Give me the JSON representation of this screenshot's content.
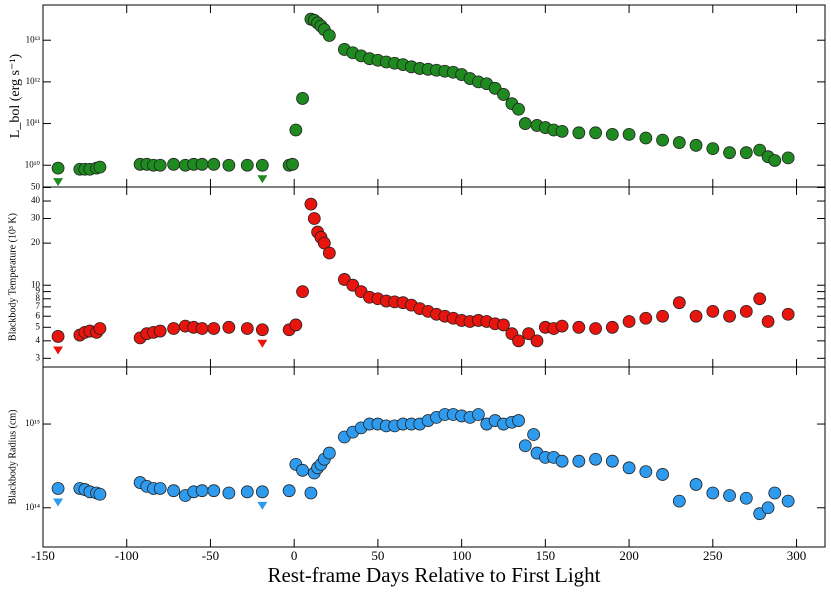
{
  "chart_data": [
    {
      "type": "scatter",
      "y_label": "L_bol (erg s⁻¹)",
      "color": "#1f8a1f",
      "log_y": true,
      "ylim": [
        3000000000.0,
        70000000000000.0
      ],
      "yticks": [
        {
          "value": 10000000000.0,
          "label": "10¹⁰"
        },
        {
          "value": 100000000000.0,
          "label": "10¹¹"
        },
        {
          "value": 1000000000000.0,
          "label": "10¹²"
        },
        {
          "value": 10000000000000.0,
          "label": "10¹³"
        }
      ],
      "upper_limits": [
        0,
        17
      ],
      "x": [
        -141,
        -128,
        -125,
        -122,
        -118,
        -116,
        -92,
        -88,
        -84,
        -80,
        -72,
        -65,
        -60,
        -55,
        -48,
        -39,
        -28,
        -19,
        -3,
        -1,
        1,
        5,
        10,
        12,
        14,
        16,
        18,
        21,
        30,
        35,
        40,
        45,
        50,
        55,
        60,
        65,
        70,
        75,
        80,
        85,
        90,
        95,
        100,
        105,
        110,
        115,
        120,
        125,
        130,
        134,
        138,
        145,
        150,
        155,
        160,
        170,
        180,
        190,
        200,
        210,
        220,
        230,
        240,
        250,
        260,
        270,
        278,
        283,
        287,
        295
      ],
      "values": [
        8500000000.0,
        8000000000.0,
        8000000000.0,
        8000000000.0,
        8500000000.0,
        9000000000.0,
        10500000000.0,
        10500000000.0,
        10000000000.0,
        10000000000.0,
        10500000000.0,
        10000000000.0,
        10500000000.0,
        10500000000.0,
        10500000000.0,
        10000000000.0,
        10000000000.0,
        10000000000.0,
        10000000000.0,
        10500000000.0,
        70000000000.0,
        400000000000.0,
        32000000000000.0,
        30000000000000.0,
        26000000000000.0,
        22000000000000.0,
        18000000000000.0,
        13000000000000.0,
        6000000000000.0,
        5000000000000.0,
        4200000000000.0,
        3600000000000.0,
        3300000000000.0,
        3000000000000.0,
        2800000000000.0,
        2600000000000.0,
        2300000000000.0,
        2100000000000.0,
        2000000000000.0,
        1900000000000.0,
        1800000000000.0,
        1700000000000.0,
        1500000000000.0,
        1200000000000.0,
        1000000000000.0,
        900000000000.0,
        700000000000.0,
        500000000000.0,
        300000000000.0,
        220000000000.0,
        100000000000.0,
        90000000000.0,
        80000000000.0,
        70000000000.0,
        65000000000.0,
        60000000000.0,
        60000000000.0,
        55000000000.0,
        55000000000.0,
        45000000000.0,
        40000000000.0,
        35000000000.0,
        30000000000.0,
        25000000000.0,
        20000000000.0,
        20000000000.0,
        23000000000.0,
        16000000000.0,
        13000000000.0,
        15000000000.0
      ]
    },
    {
      "type": "scatter",
      "y_label": "Blackbody Temperature (10³ K)",
      "color": "#e8140e",
      "log_y": true,
      "ylim": [
        2.6,
        50.4
      ],
      "yticks": [
        3,
        4,
        5,
        6,
        7,
        8,
        9,
        10,
        20,
        30,
        40,
        50
      ],
      "upper_limits": [
        0,
        17
      ],
      "x": [
        -141,
        -128,
        -125,
        -122,
        -118,
        -116,
        -92,
        -88,
        -84,
        -80,
        -72,
        -65,
        -60,
        -55,
        -48,
        -39,
        -28,
        -19,
        -3,
        1,
        5,
        10,
        12,
        14,
        16,
        18,
        21,
        30,
        35,
        40,
        45,
        50,
        55,
        60,
        65,
        70,
        75,
        80,
        85,
        90,
        95,
        100,
        105,
        110,
        115,
        120,
        125,
        130,
        134,
        140,
        145,
        150,
        155,
        160,
        170,
        180,
        190,
        200,
        210,
        220,
        230,
        240,
        250,
        260,
        270,
        278,
        283,
        295
      ],
      "values": [
        4.3,
        4.4,
        4.6,
        4.7,
        4.6,
        4.9,
        4.2,
        4.5,
        4.6,
        4.7,
        4.9,
        5.1,
        5,
        4.9,
        4.9,
        5,
        4.9,
        4.8,
        4.8,
        5.2,
        9,
        38,
        30,
        24,
        22,
        20,
        17,
        11,
        10,
        9,
        8.2,
        8,
        7.7,
        7.6,
        7.5,
        7.2,
        6.8,
        6.5,
        6.2,
        6,
        5.8,
        5.6,
        5.5,
        5.6,
        5.5,
        5.3,
        5.2,
        4.5,
        4,
        4.5,
        4,
        5,
        4.9,
        5.1,
        5,
        4.9,
        5,
        5.5,
        5.8,
        6,
        7.5,
        6,
        6.5,
        6,
        6.5,
        8,
        5.5,
        6.2
      ]
    },
    {
      "type": "scatter",
      "y_label": "Blackbody Radius (cm)",
      "x_label": "Rest-frame Days Relative to First Light",
      "color": "#2f9bef",
      "log_y": true,
      "xlim": [
        -150,
        317
      ],
      "xticks": [
        -150,
        -100,
        -50,
        0,
        50,
        100,
        150,
        200,
        250,
        300
      ],
      "ylim": [
        34000000000000.0,
        4800000000000000.0
      ],
      "yticks": [
        {
          "value": 100000000000000.0,
          "label": "10¹⁴"
        },
        {
          "value": 1000000000000000.0,
          "label": "10¹⁵"
        }
      ],
      "upper_limits": [
        0,
        17
      ],
      "x": [
        -141,
        -128,
        -125,
        -122,
        -118,
        -116,
        -92,
        -88,
        -84,
        -80,
        -72,
        -65,
        -60,
        -55,
        -48,
        -39,
        -28,
        -19,
        -3,
        1,
        5,
        10,
        12,
        14,
        16,
        18,
        21,
        30,
        35,
        40,
        45,
        50,
        55,
        60,
        65,
        70,
        75,
        80,
        85,
        90,
        95,
        100,
        105,
        110,
        115,
        120,
        125,
        130,
        134,
        138,
        143,
        145,
        150,
        155,
        160,
        170,
        180,
        190,
        200,
        210,
        220,
        230,
        240,
        250,
        260,
        270,
        278,
        283,
        287,
        295
      ],
      "values": [
        170000000000000.0,
        170000000000000.0,
        165000000000000.0,
        155000000000000.0,
        150000000000000.0,
        145000000000000.0,
        200000000000000.0,
        180000000000000.0,
        170000000000000.0,
        170000000000000.0,
        160000000000000.0,
        140000000000000.0,
        155000000000000.0,
        160000000000000.0,
        160000000000000.0,
        150000000000000.0,
        155000000000000.0,
        155000000000000.0,
        160000000000000.0,
        330000000000000.0,
        280000000000000.0,
        150000000000000.0,
        260000000000000.0,
        300000000000000.0,
        330000000000000.0,
        380000000000000.0,
        450000000000000.0,
        700000000000000.0,
        800000000000000.0,
        900000000000000.0,
        1000000000000000.0,
        1000000000000000.0,
        950000000000000.0,
        950000000000000.0,
        1000000000000000.0,
        1000000000000000.0,
        1000000000000000.0,
        1100000000000000.0,
        1200000000000000.0,
        1300000000000000.0,
        1300000000000000.0,
        1250000000000000.0,
        1200000000000000.0,
        1300000000000000.0,
        1000000000000000.0,
        1100000000000000.0,
        1000000000000000.0,
        1050000000000000.0,
        1100000000000000.0,
        550000000000000.0,
        750000000000000.0,
        450000000000000.0,
        400000000000000.0,
        400000000000000.0,
        360000000000000.0,
        360000000000000.0,
        380000000000000.0,
        360000000000000.0,
        300000000000000.0,
        270000000000000.0,
        250000000000000.0,
        120000000000000.0,
        190000000000000.0,
        150000000000000.0,
        140000000000000.0,
        130000000000000.0,
        85000000000000.0,
        100000000000000.0,
        150000000000000.0,
        120000000000000.0
      ]
    }
  ]
}
